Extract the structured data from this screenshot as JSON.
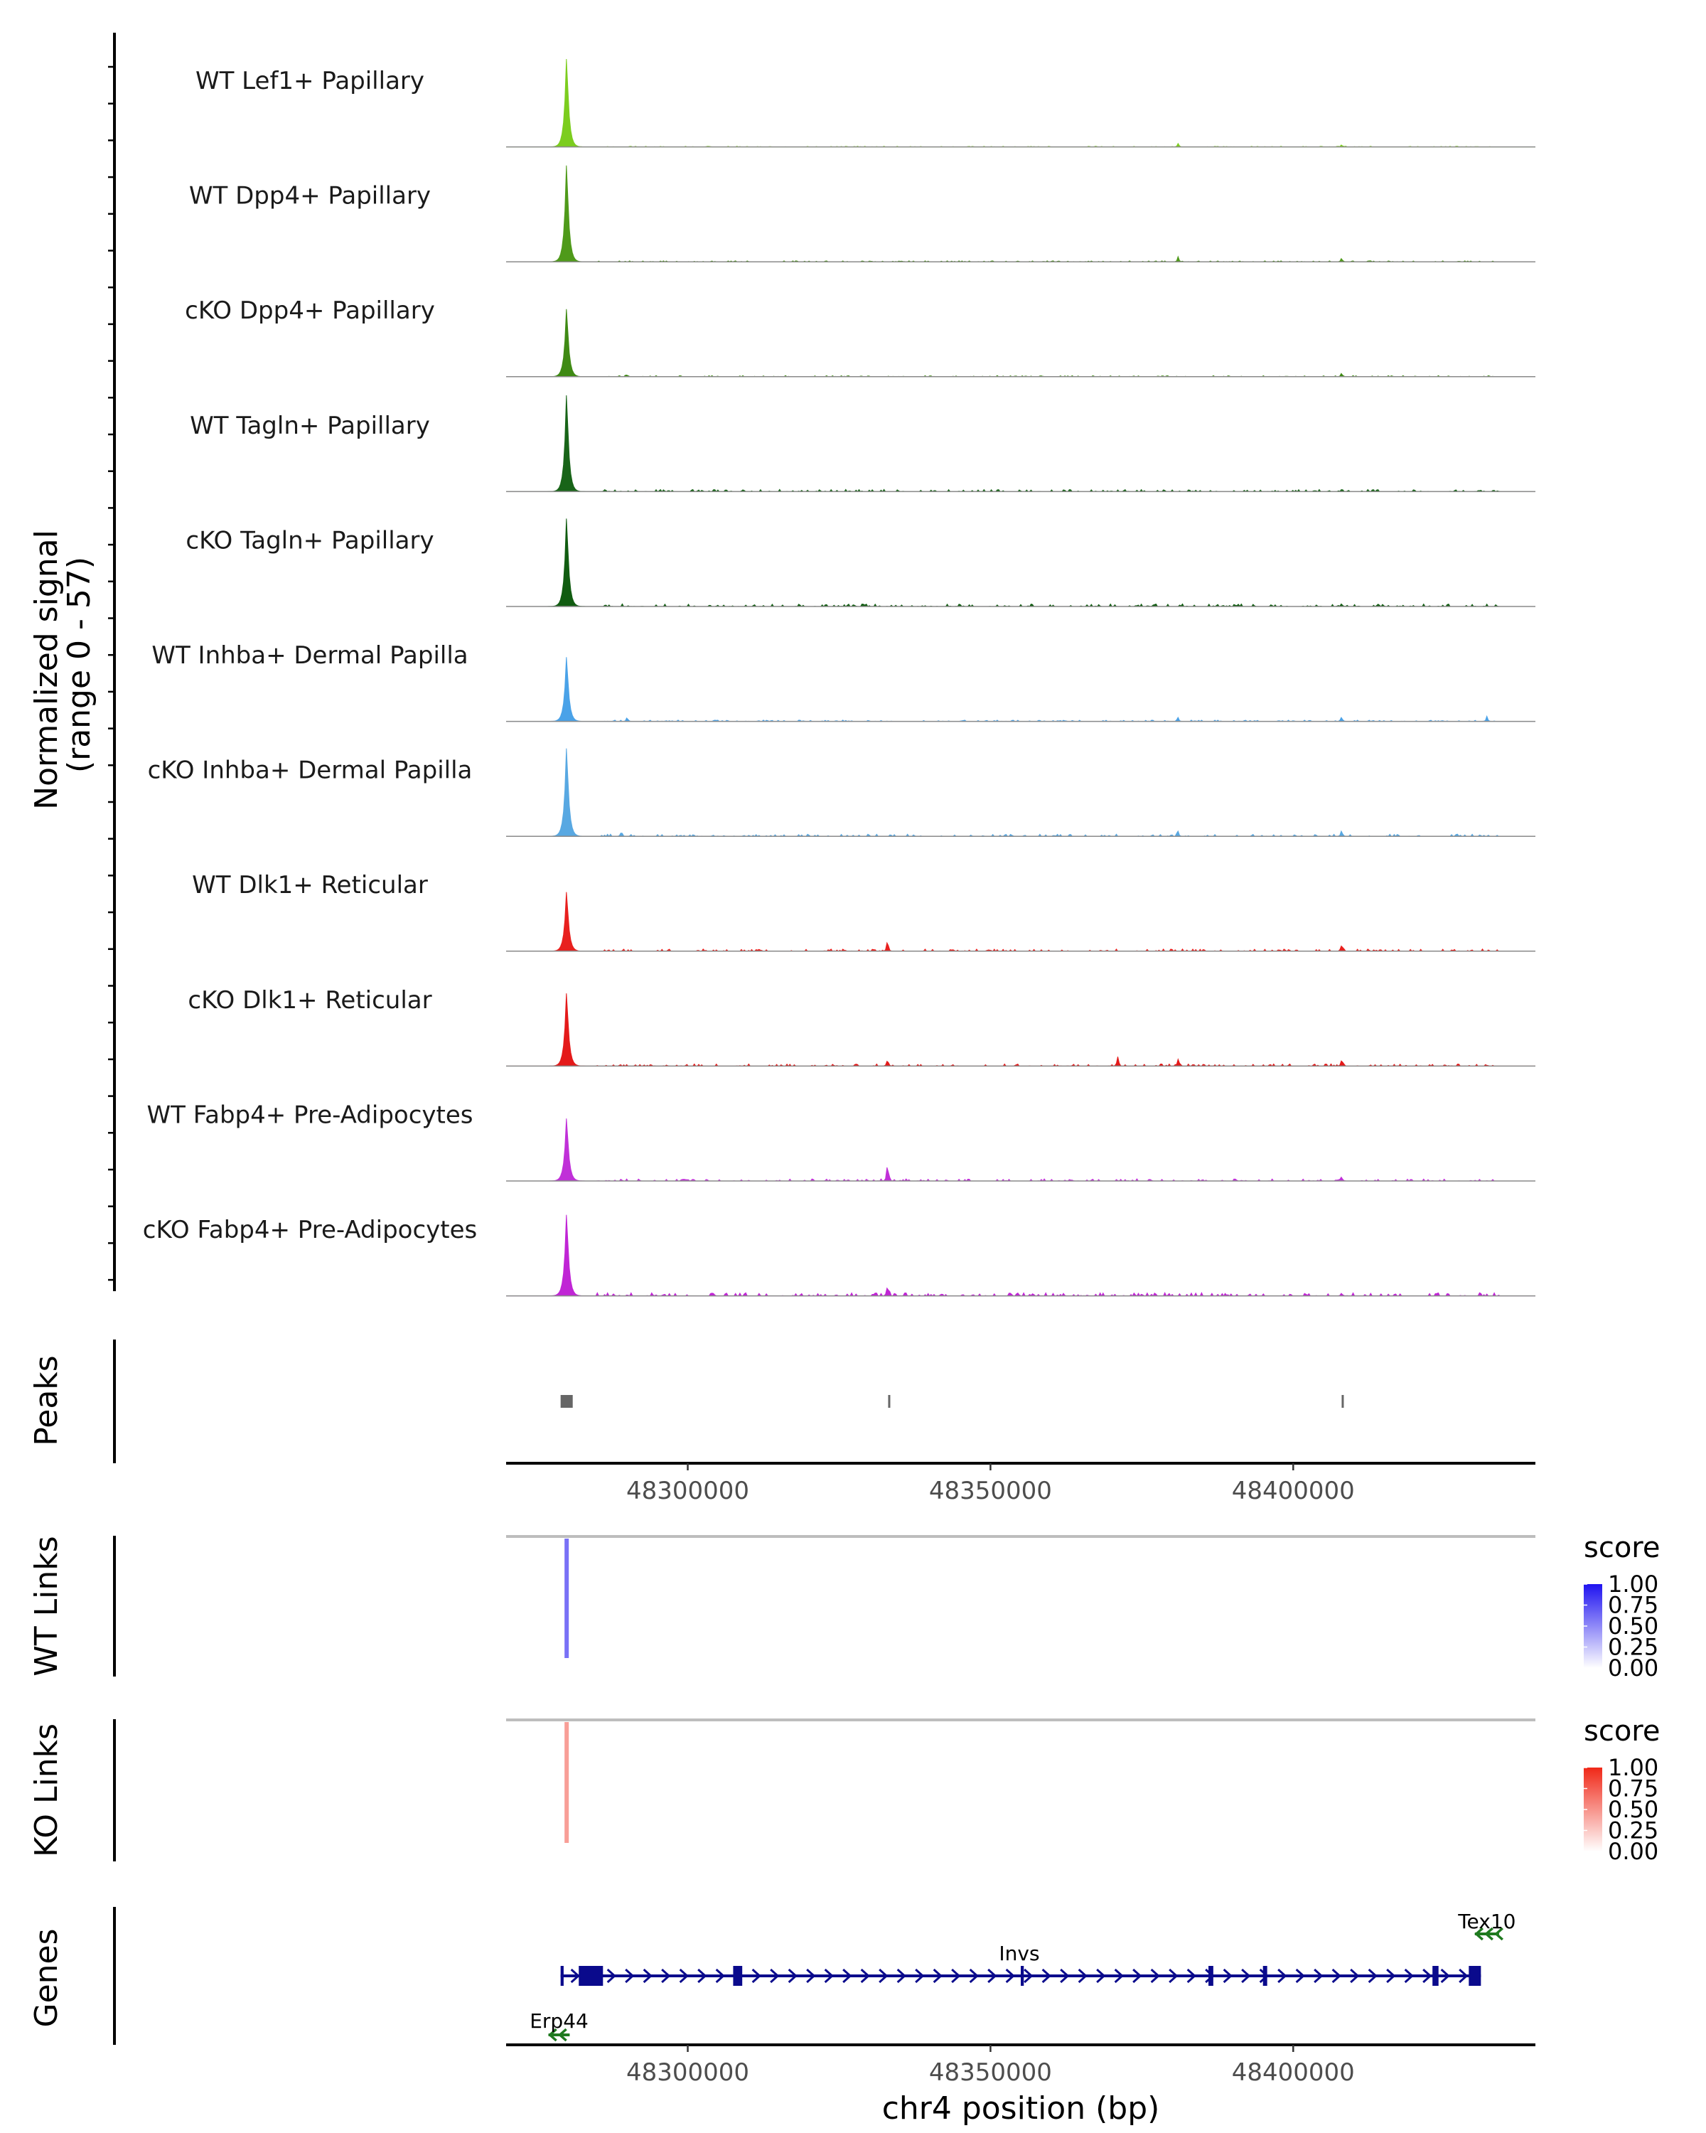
{
  "chart_data": {
    "type": "area",
    "title": "",
    "y_axis_label_line1": "Normalized signal",
    "y_axis_label_line2": "(range 0 - 57)",
    "signal_range": [
      0,
      57
    ],
    "x_range": [
      48270000,
      48440000
    ],
    "xlabel": "chr4 position (bp)",
    "x_ticks": [
      "48300000",
      "48350000",
      "48400000"
    ],
    "x_tick_values": [
      48300000,
      48350000,
      48400000
    ],
    "tracks": [
      {
        "name": "WT Lef1+ Papillary",
        "color": "#7CCD1E",
        "peaks": [
          {
            "pos": 48280000,
            "h": 52
          },
          {
            "pos": 48381000,
            "h": 2
          },
          {
            "pos": 48408000,
            "h": 1.5
          }
        ],
        "noise": 0.3
      },
      {
        "name": "WT Dpp4+ Papillary",
        "color": "#4F9A1A",
        "peaks": [
          {
            "pos": 48280000,
            "h": 57
          },
          {
            "pos": 48381000,
            "h": 3
          },
          {
            "pos": 48408000,
            "h": 2.5
          }
        ],
        "noise": 0.5
      },
      {
        "name": "cKO Dpp4+ Papillary",
        "color": "#3F8A14",
        "peaks": [
          {
            "pos": 48280000,
            "h": 40
          },
          {
            "pos": 48290000,
            "h": 1.5
          },
          {
            "pos": 48408000,
            "h": 2.5
          }
        ],
        "noise": 0.5
      },
      {
        "name": "WT Tagln+ Papillary",
        "color": "#186418",
        "peaks": [
          {
            "pos": 48280000,
            "h": 57
          },
          {
            "pos": 48408000,
            "h": 1.5
          }
        ],
        "noise": 1.0
      },
      {
        "name": "cKO Tagln+ Papillary",
        "color": "#115C11",
        "peaks": [
          {
            "pos": 48280000,
            "h": 52
          },
          {
            "pos": 48377000,
            "h": 2
          },
          {
            "pos": 48408000,
            "h": 2
          }
        ],
        "noise": 1.2
      },
      {
        "name": "WT Inhba+ Dermal Papilla",
        "color": "#4AA2E8",
        "peaks": [
          {
            "pos": 48280000,
            "h": 38
          },
          {
            "pos": 48290000,
            "h": 2.5
          },
          {
            "pos": 48381000,
            "h": 2
          },
          {
            "pos": 48408000,
            "h": 3
          },
          {
            "pos": 48432000,
            "h": 3
          }
        ],
        "noise": 0.6
      },
      {
        "name": "cKO Inhba+ Dermal Papilla",
        "color": "#58A8E2",
        "peaks": [
          {
            "pos": 48280000,
            "h": 52
          },
          {
            "pos": 48289000,
            "h": 2.5
          },
          {
            "pos": 48381000,
            "h": 2.5
          },
          {
            "pos": 48408000,
            "h": 4
          },
          {
            "pos": 48427000,
            "h": 2
          }
        ],
        "noise": 1.0
      },
      {
        "name": "WT Dlk1+ Reticular",
        "color": "#E8201E",
        "peaks": [
          {
            "pos": 48280000,
            "h": 35
          },
          {
            "pos": 48333000,
            "h": 7
          },
          {
            "pos": 48408000,
            "h": 4
          }
        ],
        "noise": 1.0
      },
      {
        "name": "cKO Dlk1+ Reticular",
        "color": "#E41A1A",
        "peaks": [
          {
            "pos": 48280000,
            "h": 43
          },
          {
            "pos": 48333000,
            "h": 5
          },
          {
            "pos": 48371000,
            "h": 6
          },
          {
            "pos": 48381000,
            "h": 4
          },
          {
            "pos": 48408000,
            "h": 4
          }
        ],
        "noise": 1.0
      },
      {
        "name": "WT Fabp4+ Pre-Adipocytes",
        "color": "#C030D8",
        "peaks": [
          {
            "pos": 48280000,
            "h": 37
          },
          {
            "pos": 48333000,
            "h": 12
          },
          {
            "pos": 48408000,
            "h": 3
          }
        ],
        "noise": 1.0
      },
      {
        "name": "cKO Fabp4+ Pre-Adipocytes",
        "color": "#C025D5",
        "peaks": [
          {
            "pos": 48280000,
            "h": 48
          },
          {
            "pos": 48333000,
            "h": 8
          },
          {
            "pos": 48408000,
            "h": 2
          }
        ],
        "noise": 1.5
      }
    ],
    "peaks_track": {
      "label": "Peaks",
      "regions": [
        {
          "start": 48279000,
          "end": 48281000
        },
        {
          "start": 48333100,
          "end": 48333300
        },
        {
          "start": 48408000,
          "end": 48408200
        }
      ]
    },
    "links_tracks": [
      {
        "label": "WT Links",
        "anchor": 48280000,
        "score": 0.6,
        "legend_title": "score",
        "legend_labels": [
          "1.00",
          "0.75",
          "0.50",
          "0.25",
          "0.00"
        ],
        "color_high": "#1F13F0"
      },
      {
        "label": "KO Links",
        "anchor": 48280000,
        "score": 0.45,
        "legend_title": "score",
        "legend_labels": [
          "1.00",
          "0.75",
          "0.50",
          "0.25",
          "0.00"
        ],
        "color_high": "#F02818"
      }
    ],
    "genes_track": {
      "label": "Genes",
      "genes": [
        {
          "name": "Invs",
          "start": 48279000,
          "end": 48431000,
          "strand": "+",
          "color": "#0A0A8C",
          "exons": [
            [
              48279000,
              48279500
            ],
            [
              48282000,
              48286000
            ],
            [
              48307500,
              48309000
            ],
            [
              48355000,
              48355500
            ],
            [
              48386000,
              48386800
            ],
            [
              48395000,
              48395700
            ],
            [
              48423000,
              48424000
            ],
            [
              48429000,
              48431000
            ]
          ]
        },
        {
          "name": "Tex10",
          "start": 48430000,
          "end": 48434000,
          "strand": "-",
          "color": "#1F7A1F",
          "exons": []
        },
        {
          "name": "Erp44",
          "start": 48277000,
          "end": 48280500,
          "strand": "-",
          "color": "#1F7A1F",
          "exons": []
        }
      ]
    }
  }
}
